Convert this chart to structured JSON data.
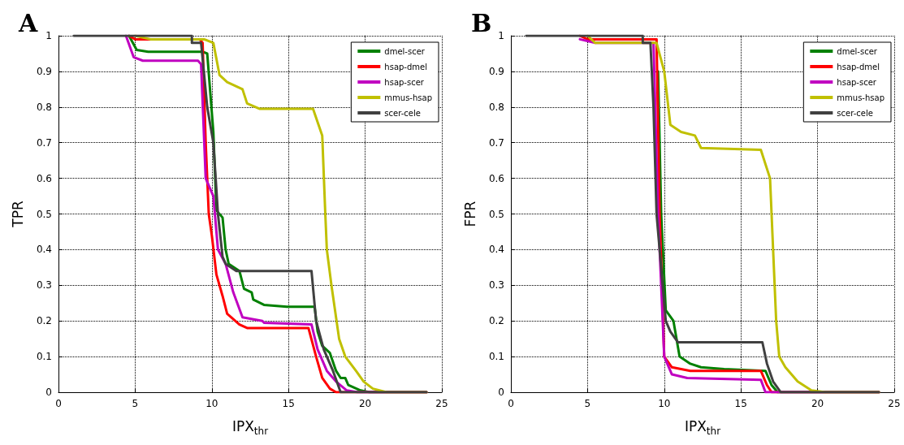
{
  "chart_data": [
    {
      "type": "line",
      "title": "A",
      "xlabel": "IPX$_{thr}$",
      "ylabel": "TPR",
      "xlim": [
        0,
        25
      ],
      "xticks": [
        0,
        5,
        10,
        15,
        20,
        25
      ],
      "ylim": [
        0,
        1
      ],
      "yticks": [
        0,
        0.1,
        0.2,
        0.3,
        0.4,
        0.5,
        0.6,
        0.7,
        0.8,
        0.9,
        1
      ],
      "grid": true,
      "legend": "top right",
      "marker": "none",
      "line_style": "solid",
      "series": [
        {
          "name": "dmel-scer",
          "color": "#008000",
          "x": [
            4.6,
            5.1,
            5.85,
            9.4,
            9.7,
            10.1,
            10.3,
            10.7,
            10.9,
            11.1,
            11.8,
            12.1,
            12.6,
            12.7,
            13.4,
            14.9,
            16.7,
            16.9,
            17.2,
            17.7,
            18.1,
            18.4,
            18.7,
            18.9,
            19.7,
            20.3,
            24
          ],
          "values": [
            1,
            0.96,
            0.955,
            0.955,
            0.95,
            0.73,
            0.51,
            0.49,
            0.4,
            0.36,
            0.34,
            0.29,
            0.28,
            0.26,
            0.245,
            0.24,
            0.24,
            0.17,
            0.13,
            0.11,
            0.06,
            0.04,
            0.04,
            0.02,
            0.005,
            0,
            0
          ]
        },
        {
          "name": "hsap-dmel",
          "color": "#ff0000",
          "x": [
            4.6,
            5.0,
            9.2,
            9.4,
            9.6,
            9.8,
            10.0,
            10.3,
            10.7,
            11.0,
            11.8,
            12.3,
            16.3,
            16.8,
            17.2,
            17.7,
            18.1,
            24
          ],
          "values": [
            1,
            0.99,
            0.99,
            0.98,
            0.7,
            0.5,
            0.44,
            0.33,
            0.27,
            0.22,
            0.19,
            0.18,
            0.18,
            0.1,
            0.04,
            0.01,
            0,
            0
          ]
        },
        {
          "name": "hsap-scer",
          "color": "#c000c0",
          "x": [
            4.4,
            4.9,
            5.5,
            9.1,
            9.3,
            9.6,
            10.1,
            10.4,
            10.9,
            11.4,
            12.0,
            13.3,
            13.4,
            16.5,
            16.9,
            17.5,
            18.1,
            18.8,
            19.5,
            24
          ],
          "values": [
            1,
            0.94,
            0.93,
            0.93,
            0.92,
            0.6,
            0.55,
            0.4,
            0.36,
            0.28,
            0.21,
            0.2,
            0.195,
            0.19,
            0.12,
            0.06,
            0.03,
            0.005,
            0,
            0
          ]
        },
        {
          "name": "mmus-hsap",
          "color": "#c0c000",
          "x": [
            5.0,
            6.0,
            9.5,
            10.1,
            10.5,
            11.0,
            12.0,
            12.3,
            13.1,
            16.6,
            17.2,
            17.4,
            17.5,
            17.8,
            18.3,
            18.7,
            19.4,
            19.9,
            20.5,
            21.4,
            24
          ],
          "values": [
            1,
            0.99,
            0.99,
            0.98,
            0.89,
            0.87,
            0.85,
            0.81,
            0.795,
            0.795,
            0.72,
            0.5,
            0.4,
            0.3,
            0.15,
            0.1,
            0.06,
            0.03,
            0.01,
            0,
            0
          ]
        },
        {
          "name": "scer-cele",
          "color": "#404040",
          "x": [
            1,
            8.7,
            8.7,
            9.3,
            9.7,
            10.1,
            10.4,
            10.7,
            10.9,
            11.6,
            16.5,
            16.8,
            17.3,
            17.9,
            18.4,
            24
          ],
          "values": [
            1,
            1,
            0.98,
            0.98,
            0.8,
            0.7,
            0.5,
            0.38,
            0.36,
            0.34,
            0.34,
            0.2,
            0.12,
            0.06,
            0,
            0
          ]
        }
      ]
    },
    {
      "type": "line",
      "title": "B",
      "xlabel": "IPX$_{thr}$",
      "ylabel": "FPR",
      "xlim": [
        0,
        25
      ],
      "xticks": [
        0,
        5,
        10,
        15,
        20,
        25
      ],
      "ylim": [
        0,
        1
      ],
      "yticks": [
        0,
        0.1,
        0.2,
        0.3,
        0.4,
        0.5,
        0.6,
        0.7,
        0.8,
        0.9,
        1
      ],
      "grid": true,
      "legend": "top right",
      "marker": "none",
      "line_style": "solid",
      "series": [
        {
          "name": "dmel-scer",
          "color": "#008000",
          "x": [
            9.6,
            9.8,
            10.1,
            10.6,
            11.0,
            11.7,
            12.4,
            13.9,
            16.6,
            17.0,
            17.4,
            24
          ],
          "values": [
            0.9,
            0.5,
            0.23,
            0.2,
            0.1,
            0.08,
            0.07,
            0.065,
            0.06,
            0.02,
            0,
            0
          ]
        },
        {
          "name": "hsap-dmel",
          "color": "#ff0000",
          "x": [
            4.5,
            5.0,
            9.5,
            9.7,
            10.0,
            10.5,
            11.7,
            16.3,
            16.7,
            17.0,
            24
          ],
          "values": [
            1,
            0.99,
            0.99,
            0.5,
            0.1,
            0.07,
            0.06,
            0.06,
            0.02,
            0,
            0
          ]
        },
        {
          "name": "hsap-scer",
          "color": "#c000c0",
          "x": [
            4.5,
            5.5,
            9.3,
            9.6,
            10.0,
            10.5,
            11.5,
            16.3,
            16.6,
            24
          ],
          "values": [
            0.99,
            0.98,
            0.98,
            0.5,
            0.1,
            0.05,
            0.04,
            0.035,
            0,
            0
          ]
        },
        {
          "name": "mmus-hsap",
          "color": "#c0c000",
          "x": [
            5.0,
            5.5,
            9.5,
            10.0,
            10.4,
            11.1,
            12.0,
            12.4,
            16.3,
            16.9,
            17.1,
            17.3,
            17.5,
            17.9,
            18.7,
            19.6,
            20.5,
            24
          ],
          "values": [
            1,
            0.98,
            0.98,
            0.9,
            0.75,
            0.73,
            0.72,
            0.685,
            0.68,
            0.6,
            0.4,
            0.2,
            0.1,
            0.07,
            0.03,
            0.005,
            0,
            0
          ]
        },
        {
          "name": "scer-cele",
          "color": "#404040",
          "x": [
            1,
            8.6,
            8.6,
            9.1,
            9.3,
            9.5,
            10.1,
            10.4,
            10.9,
            16.4,
            16.7,
            17.1,
            17.6,
            24
          ],
          "values": [
            1,
            1,
            0.98,
            0.98,
            0.8,
            0.5,
            0.2,
            0.17,
            0.14,
            0.14,
            0.08,
            0.03,
            0,
            0
          ]
        }
      ]
    }
  ]
}
